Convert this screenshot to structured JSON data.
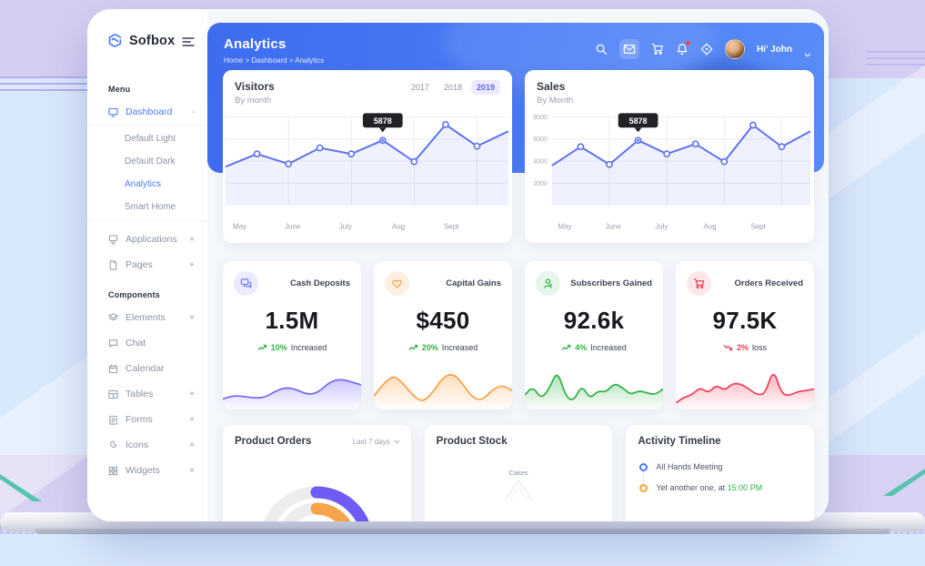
{
  "app": {
    "name": "Sofbox"
  },
  "colors": {
    "primary": "#4a7cf5",
    "banner_from": "#3e6cef",
    "banner_to": "#5a8df8",
    "tab_active_bg": "#eceafc",
    "tab_active_text": "#5e68ea",
    "purple": "#7b6cfb",
    "orange": "#f8a44c",
    "green": "#2fb344",
    "red": "#ef4257"
  },
  "sidebar": {
    "logo": "Sofbox",
    "menu_label": "Menu",
    "components_label": "Components",
    "dashboard": {
      "label": "Dashboard",
      "toggle": "-"
    },
    "dashboard_children": [
      {
        "label": "Default Light"
      },
      {
        "label": "Default Dark"
      },
      {
        "label": "Analytics"
      },
      {
        "label": "Smart Home"
      }
    ],
    "items": [
      {
        "label": "Applications",
        "toggle": "+"
      },
      {
        "label": "Pages",
        "toggle": "+"
      }
    ],
    "component_items": [
      {
        "label": "Elements",
        "toggle": "+"
      },
      {
        "label": "Chat",
        "toggle": ""
      },
      {
        "label": "Calendar",
        "toggle": ""
      },
      {
        "label": "Tables",
        "toggle": "+"
      },
      {
        "label": "Forms",
        "toggle": "+"
      },
      {
        "label": "Icons",
        "toggle": "+"
      },
      {
        "label": "Widgets",
        "toggle": "+"
      }
    ]
  },
  "header": {
    "title": "Analytics",
    "breadcrumb": "Home > Dashboard > Analytics",
    "greeting": "Hi' John",
    "icons": [
      "search-icon",
      "mail-icon",
      "cart-icon",
      "bell-icon",
      "locate-icon"
    ]
  },
  "chart_data": [
    {
      "id": "visitors",
      "type": "line",
      "title": "Visitors",
      "subtitle": "By month",
      "tabs": [
        "2017",
        "2018",
        "2019"
      ],
      "active_tab": "2019",
      "x": [
        "May",
        "June",
        "July",
        "Aug",
        "Sept"
      ],
      "values": [
        3500,
        4650,
        3750,
        5200,
        4650,
        5878,
        3950,
        7300,
        5350,
        6700
      ],
      "ylim": [
        0,
        8000
      ],
      "y_ticks": [],
      "tooltip": {
        "index": 5,
        "label": "5878"
      },
      "line_color": "#5f71f0",
      "grid": true,
      "legend": "none"
    },
    {
      "id": "sales",
      "type": "line",
      "title": "Sales",
      "subtitle": "By Month",
      "x": [
        "May",
        "June",
        "July",
        "Aug",
        "Sept"
      ],
      "values": [
        3600,
        5300,
        3700,
        5878,
        4650,
        5550,
        3950,
        7250,
        5300,
        6700
      ],
      "ylim": [
        0,
        8000
      ],
      "y_ticks": [
        8000,
        6000,
        4000,
        2000
      ],
      "tooltip": {
        "index": 3,
        "label": "5878"
      },
      "line_color": "#5f71f0",
      "grid": true,
      "legend": "none"
    },
    {
      "id": "cash_spark",
      "type": "area",
      "color": "#7b6cfb",
      "values": [
        18,
        26,
        24,
        20,
        22,
        38,
        46,
        40,
        28,
        34,
        58,
        66,
        60,
        52
      ]
    },
    {
      "id": "gains_spark",
      "type": "area",
      "color": "#f8a44c",
      "values": [
        25,
        55,
        75,
        55,
        25,
        10,
        35,
        70,
        80,
        55,
        20,
        15,
        40,
        52,
        38
      ]
    },
    {
      "id": "subscribers_spark",
      "type": "area",
      "color": "#35b34a",
      "values": [
        28,
        48,
        18,
        42,
        88,
        25,
        12,
        52,
        18,
        38,
        34,
        56,
        46,
        28,
        38,
        33,
        28,
        42
      ]
    },
    {
      "id": "orders_spark",
      "type": "area",
      "color": "#f0425a",
      "values": [
        8,
        22,
        28,
        46,
        32,
        52,
        38,
        56,
        54,
        42,
        28,
        30,
        92,
        30,
        26,
        36,
        38,
        42
      ]
    },
    {
      "id": "product_orders_donut",
      "type": "radialBar",
      "track_color": "#ededee",
      "series": [
        {
          "name": "outer",
          "color": "#6f5bf5",
          "value": 46
        },
        {
          "name": "inner",
          "color": "#f8a44c",
          "value": 38
        }
      ]
    },
    {
      "id": "product_stock_radar",
      "type": "radar",
      "labels": [
        "Cakes"
      ]
    }
  ],
  "stats": [
    {
      "title": "Cash Deposits",
      "value": "1.5M",
      "percent": "10%",
      "trend_word": "Increased",
      "direction": "up",
      "accent": "#7b6cfb"
    },
    {
      "title": "Capital Gains",
      "value": "$450",
      "percent": "20%",
      "trend_word": "Increased",
      "direction": "up",
      "accent": "#f8a44c"
    },
    {
      "title": "Subscribers Gained",
      "value": "92.6k",
      "percent": "4%",
      "trend_word": "Increased",
      "direction": "up",
      "accent": "#35b34a"
    },
    {
      "title": "Orders Received",
      "value": "97.5K",
      "percent": "2%",
      "trend_word": "loss",
      "direction": "down",
      "accent": "#f0425a"
    }
  ],
  "product_orders": {
    "title": "Product Orders",
    "range_label": "Last 7 days"
  },
  "product_stock": {
    "title": "Product Stock",
    "visible_label": "Cakes"
  },
  "activity": {
    "title": "Activity Timeline",
    "items": [
      {
        "text": "All Hands Meeting",
        "time": "",
        "color": "#4a7cf0"
      },
      {
        "text": "Yet another one, at",
        "time": "15:00 PM",
        "color": "#f8a23b"
      }
    ]
  }
}
